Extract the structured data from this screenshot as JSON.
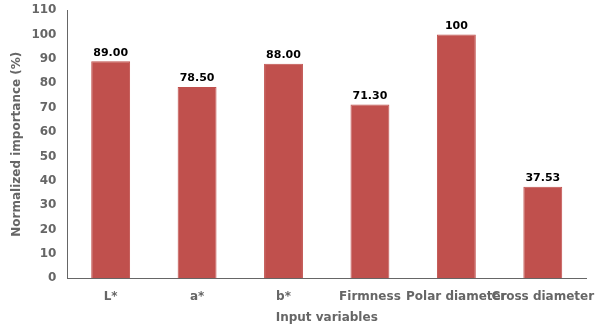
{
  "chart_data": {
    "type": "bar",
    "categories": [
      "L*",
      "a*",
      "b*",
      "Firmness",
      "Polar diameter",
      "Cross diameter"
    ],
    "values": [
      89.0,
      78.5,
      88.0,
      71.3,
      100.0,
      37.53
    ],
    "value_labels": [
      "89.00",
      "78.50",
      "88.00",
      "71.30",
      "100",
      "37.53"
    ],
    "data_labels": true,
    "color": "#c0504d",
    "xlabel": "Input variables",
    "ylabel": "Normalized importance (%)",
    "ylim": [
      0,
      110
    ],
    "yticks": [
      0,
      10,
      20,
      30,
      40,
      50,
      60,
      70,
      80,
      90,
      100,
      110
    ],
    "grid": false
  }
}
